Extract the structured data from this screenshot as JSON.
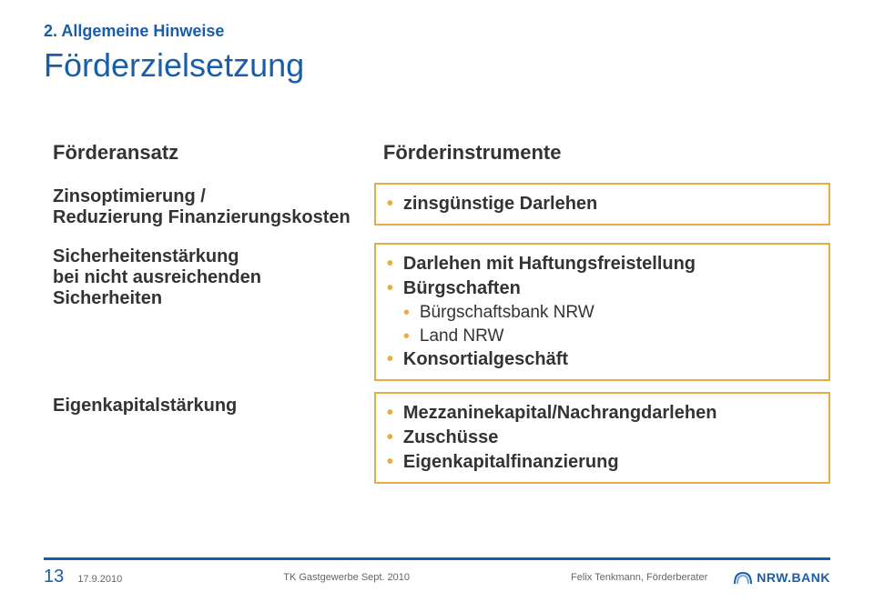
{
  "section_label": "2. Allgemeine Hinweise",
  "title": "Förderzielsetzung",
  "headers": {
    "left": "Förderansatz",
    "right": "Förderinstrumente"
  },
  "rows": [
    {
      "left_lines": [
        "Zinsoptimierung /",
        "Reduzierung Finanzierungskosten"
      ],
      "right_items": [
        {
          "level": 1,
          "text": "zinsgünstige Darlehen"
        }
      ]
    },
    {
      "left_lines": [
        "Sicherheitenstärkung",
        "bei nicht ausreichenden",
        "Sicherheiten"
      ],
      "right_items": [
        {
          "level": 1,
          "text": "Darlehen mit Haftungsfreistellung"
        },
        {
          "level": 1,
          "text": "Bürgschaften"
        },
        {
          "level": 2,
          "text": "Bürgschaftsbank NRW"
        },
        {
          "level": 2,
          "text": "Land NRW"
        },
        {
          "level": 1,
          "text": "Konsortialgeschäft"
        }
      ]
    },
    {
      "left_lines": [
        "Eigenkapitalstärkung"
      ],
      "right_items": [
        {
          "level": 1,
          "text": "Mezzaninekapital/Nachrangdarlehen"
        },
        {
          "level": 1,
          "text": "Zuschüsse"
        },
        {
          "level": 1,
          "text": "Eigenkapitalfinanzierung"
        }
      ]
    }
  ],
  "footer": {
    "page": "13",
    "date": "17.9.2010",
    "center": "TK Gastgewerbe Sept. 2010",
    "right": "Felix Tenkmann, Förderberater",
    "logo": "NRW.BANK"
  },
  "colors": {
    "accent_blue": "#1a5ea8",
    "box_border": "#e8ac44",
    "text": "#333333",
    "footer_text": "#666666"
  }
}
